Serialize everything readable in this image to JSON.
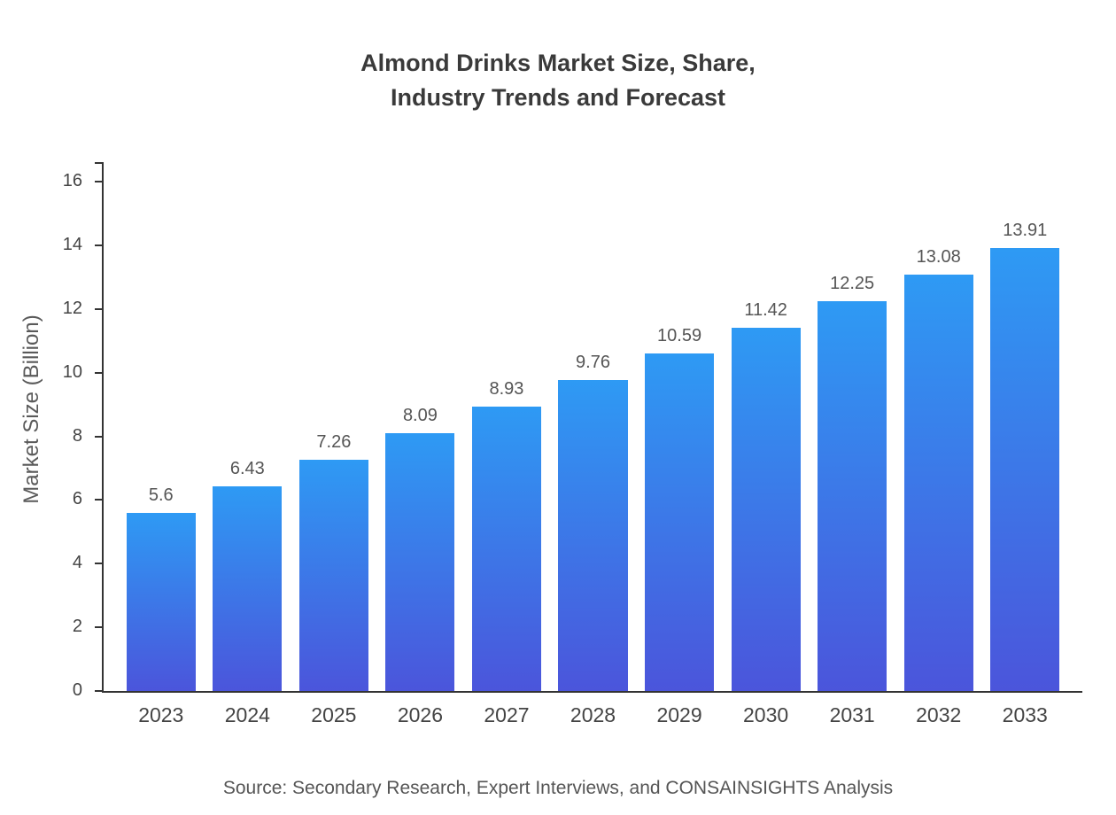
{
  "chart_data": {
    "type": "bar",
    "title": "Almond Drinks Market Size, Share, Industry Trends and Forecast",
    "title_lines": [
      "Almond Drinks Market Size, Share,",
      "Industry Trends and Forecast"
    ],
    "categories": [
      "2023",
      "2024",
      "2025",
      "2026",
      "2027",
      "2028",
      "2029",
      "2030",
      "2031",
      "2032",
      "2033"
    ],
    "values": [
      5.6,
      6.43,
      7.26,
      8.09,
      8.93,
      9.76,
      10.59,
      11.42,
      12.25,
      13.08,
      13.91
    ],
    "value_labels": [
      "5.6",
      "6.43",
      "7.26",
      "8.09",
      "8.93",
      "9.76",
      "10.59",
      "11.42",
      "12.25",
      "13.08",
      "13.91"
    ],
    "xlabel": "",
    "ylabel": "Market Size (Billion)",
    "ylim": [
      0,
      16
    ],
    "yticks": [
      0,
      2,
      4,
      6,
      8,
      10,
      12,
      14,
      16
    ],
    "grid": false,
    "legend": null,
    "colors": {
      "bar_gradient_top": "#2E9AF4",
      "bar_gradient_bottom": "#4B55DB",
      "axis": "#333333",
      "title": "#3A3A3A",
      "tick_label": "#444444",
      "value_label": "#555555",
      "source": "#555555",
      "background": "#FFFFFF"
    },
    "source": "Source: Secondary Research, Expert Interviews, and CONSAINSIGHTS Analysis"
  }
}
